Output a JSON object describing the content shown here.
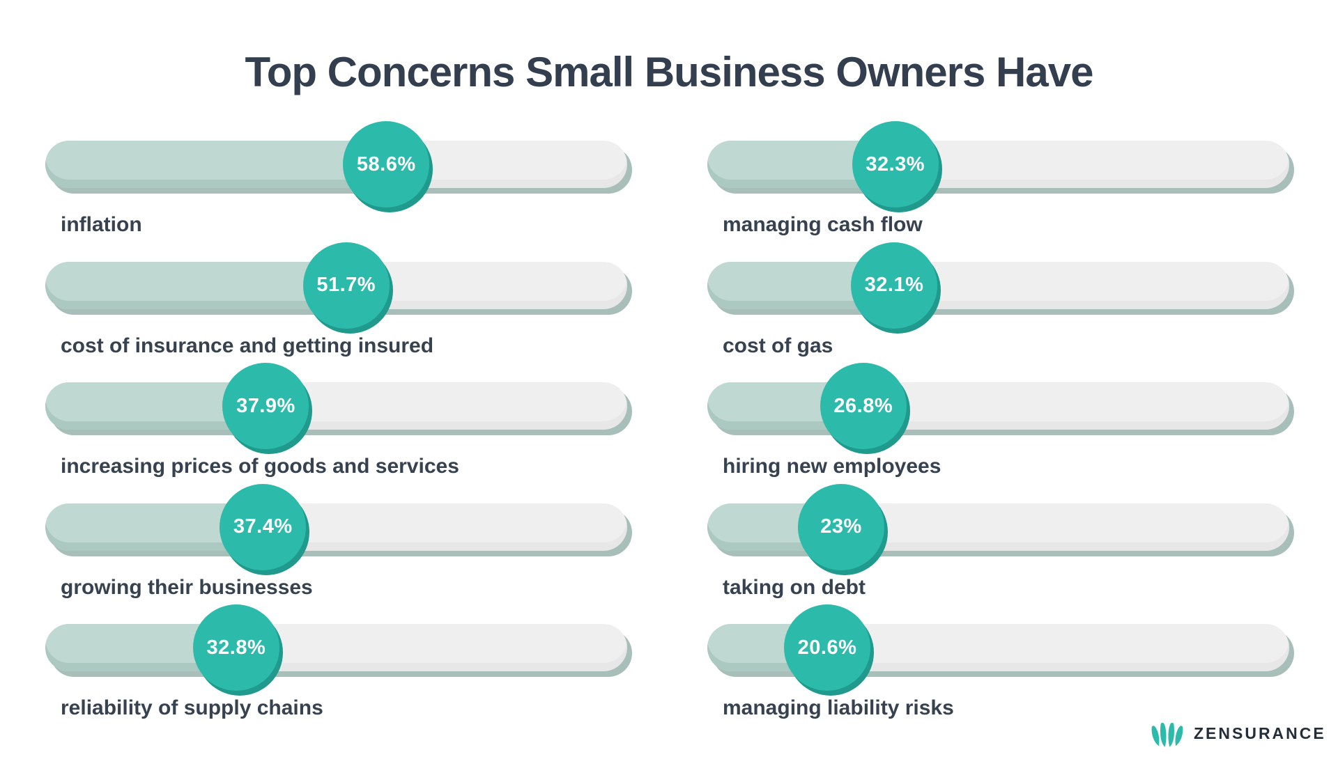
{
  "chart_data": {
    "type": "bar",
    "orientation": "horizontal",
    "title": "Top Concerns Small Business Owners Have",
    "unit": "%",
    "value_range": [
      0,
      100
    ],
    "columns": [
      {
        "name": "left",
        "items": [
          {
            "label": "inflation",
            "value": 58.6,
            "display": "58.6%"
          },
          {
            "label": "cost of insurance and getting insured",
            "value": 51.7,
            "display": "51.7%"
          },
          {
            "label": "increasing prices of goods and services",
            "value": 37.9,
            "display": "37.9%"
          },
          {
            "label": "growing their businesses",
            "value": 37.4,
            "display": "37.4%"
          },
          {
            "label": "reliability of supply chains",
            "value": 32.8,
            "display": "32.8%"
          }
        ]
      },
      {
        "name": "right",
        "items": [
          {
            "label": "managing cash flow",
            "value": 32.3,
            "display": "32.3%"
          },
          {
            "label": "cost of gas",
            "value": 32.1,
            "display": "32.1%"
          },
          {
            "label": "hiring new employees",
            "value": 26.8,
            "display": "26.8%"
          },
          {
            "label": "taking on debt",
            "value": 23,
            "display": "23%"
          },
          {
            "label": "managing liability risks",
            "value": 20.6,
            "display": "20.6%"
          }
        ]
      }
    ],
    "legend": "none",
    "grid": "off"
  },
  "brand": {
    "name": "ZENSURANCE",
    "icon": "lotus-icon"
  },
  "colors": {
    "accent_teal": "#2CBAAB",
    "accent_teal_shadow": "#1F9A8D",
    "bar_fill": "#BFD9D2",
    "bar_fill_edge": "#A9C6BE",
    "bar_track": "#EFEFEF",
    "bar_shadow": "#A7BFB8",
    "title_text": "#333F4E",
    "label_text": "#36424F",
    "brand_text": "#242E3B",
    "percent_text": "#FFFFFF"
  }
}
